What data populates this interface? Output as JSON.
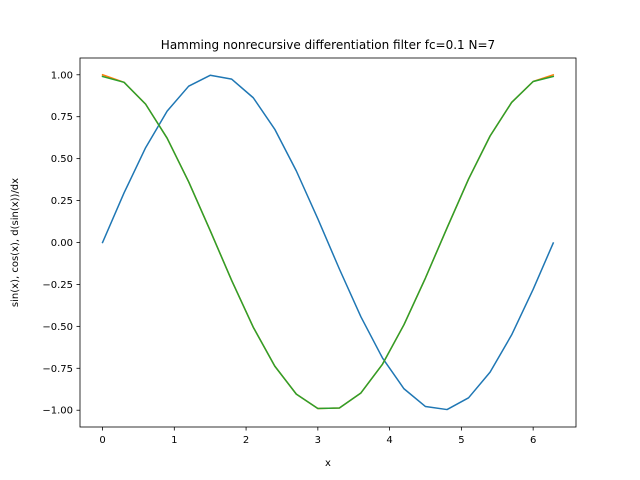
{
  "chart_data": {
    "type": "line",
    "title": "Hamming nonrecursive differentiation filter fc=0.1 N=7",
    "xlabel": "x",
    "ylabel": "sin(x), cos(x),  d(sin(x))/dx",
    "xlim": [
      -0.314,
      6.597
    ],
    "ylim": [
      -1.1,
      1.1
    ],
    "xticks": [
      0,
      1,
      2,
      3,
      4,
      5,
      6
    ],
    "yticks": [
      -1.0,
      -0.75,
      -0.5,
      -0.25,
      0.0,
      0.25,
      0.5,
      0.75,
      1.0
    ],
    "xtick_labels": [
      "0",
      "1",
      "2",
      "3",
      "4",
      "5",
      "6"
    ],
    "ytick_labels": [
      "−1.00",
      "−0.75",
      "−0.50",
      "−0.25",
      "0.00",
      "0.25",
      "0.50",
      "0.75",
      "1.00"
    ],
    "grid": false,
    "legend": false,
    "x": [
      0.0,
      0.3,
      0.6,
      0.9,
      1.2,
      1.5,
      1.8,
      2.1,
      2.4,
      2.7,
      3.0,
      3.3,
      3.6,
      3.9,
      4.2,
      4.5,
      4.8,
      5.1,
      5.4,
      5.7,
      6.0,
      6.28
    ],
    "series": [
      {
        "color": "#1f77b4",
        "values": [
          0.0,
          0.296,
          0.565,
          0.783,
          0.932,
          0.997,
          0.974,
          0.863,
          0.675,
          0.427,
          0.141,
          -0.158,
          -0.443,
          -0.688,
          -0.872,
          -0.978,
          -0.996,
          -0.926,
          -0.773,
          -0.551,
          -0.279,
          -0.003
        ]
      },
      {
        "color": "#ff7f0e",
        "values": [
          1.0,
          0.955,
          0.825,
          0.622,
          0.362,
          0.071,
          -0.227,
          -0.505,
          -0.737,
          -0.904,
          -0.99,
          -0.987,
          -0.897,
          -0.726,
          -0.49,
          -0.211,
          0.087,
          0.378,
          0.635,
          0.835,
          0.96,
          1.0
        ]
      },
      {
        "color": "#2ca02c",
        "values": [
          0.99,
          0.955,
          0.825,
          0.622,
          0.362,
          0.071,
          -0.227,
          -0.505,
          -0.737,
          -0.904,
          -0.99,
          -0.987,
          -0.897,
          -0.726,
          -0.49,
          -0.211,
          0.087,
          0.378,
          0.635,
          0.835,
          0.96,
          0.99
        ]
      }
    ]
  }
}
